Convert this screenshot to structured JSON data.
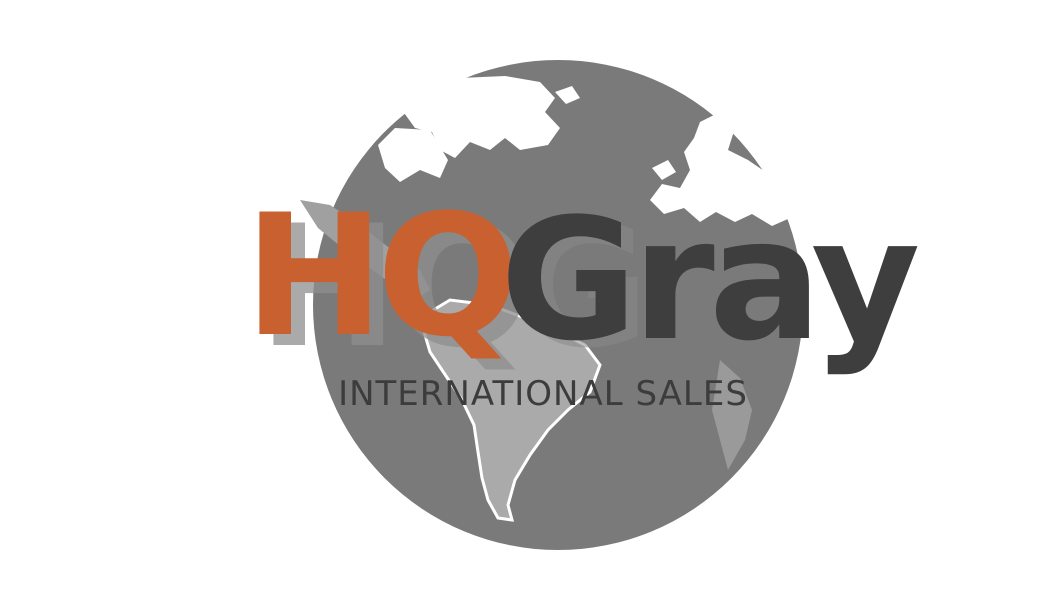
{
  "logo": {
    "brand_primary": "HQ",
    "brand_secondary": "Gray",
    "tagline": "INTERNATIONAL SALES"
  },
  "colors": {
    "background": "#ffffff",
    "globe_ocean": "#7a7a7a",
    "globe_land": "#ffffff",
    "south_america": "#aaaaaa",
    "brand_orange": "#c8602f",
    "brand_orange_shadow": "#8e8e8e",
    "brand_dark": "#3e3e3e",
    "brand_dark_shadow": "#8a8a8a",
    "tagline": "#3c3c3c"
  },
  "icons": {
    "globe": "globe-icon"
  }
}
